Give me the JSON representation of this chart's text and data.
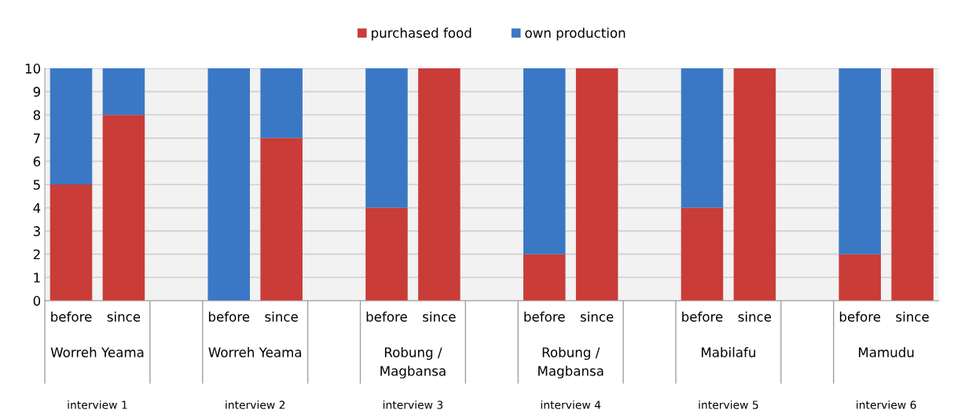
{
  "chart_data": {
    "type": "bar",
    "stacked": true,
    "categories": [
      "before",
      "since",
      null,
      "before",
      "since",
      null,
      "before",
      "since",
      null,
      "before",
      "since",
      null,
      "before",
      "since",
      null,
      "before",
      "since"
    ],
    "series": [
      {
        "name": "purchased food",
        "color": "#c93c38",
        "values": [
          5,
          8,
          null,
          0,
          7,
          null,
          4,
          10,
          null,
          2,
          10,
          null,
          4,
          10,
          null,
          2,
          10
        ]
      },
      {
        "name": "own production",
        "color": "#3a78c6",
        "values": [
          5,
          2,
          null,
          10,
          3,
          null,
          6,
          0,
          null,
          8,
          0,
          null,
          6,
          0,
          null,
          8,
          0
        ]
      }
    ],
    "annotations": [
      "Worreh Yeama",
      "interview 1",
      "Worreh Yeama",
      "interview 2",
      "Robung /\nMagbansa",
      "interview 3",
      "Robung /\nMagbansa",
      "interview 4",
      "Mabilafu",
      "interview 5",
      "Mamudu",
      "interview 6"
    ],
    "ylim": [
      0,
      10
    ],
    "yticks": [
      0,
      1,
      2,
      3,
      4,
      5,
      6,
      7,
      8,
      9,
      10
    ],
    "grid": "y",
    "legend": "top"
  }
}
